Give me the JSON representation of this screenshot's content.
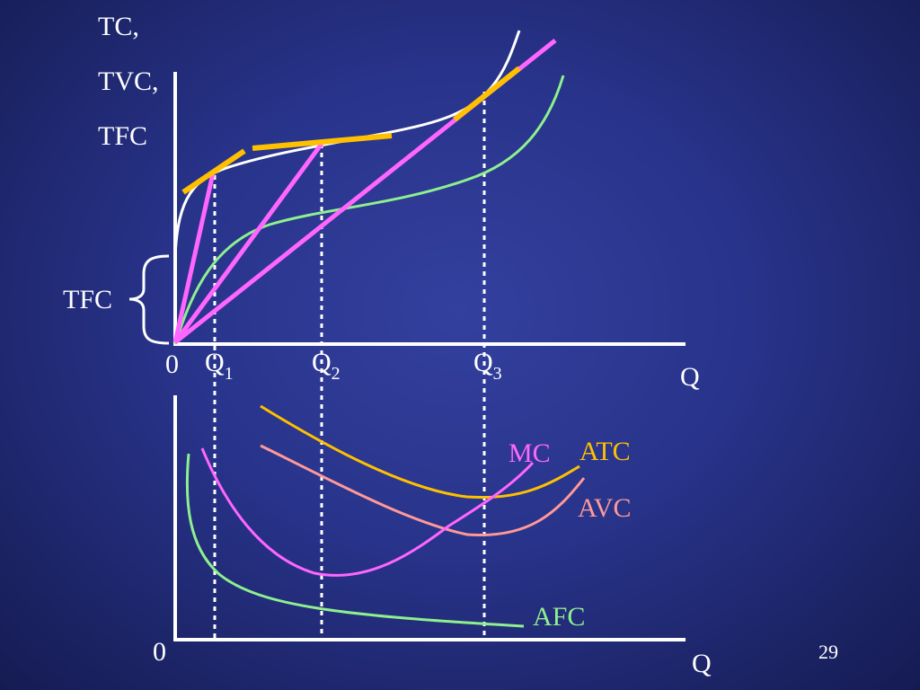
{
  "slide": {
    "page_number": "29"
  },
  "top_graph": {
    "y_label_lines": [
      "TC,",
      "TVC,",
      "TFC"
    ],
    "tfc_bracket_label": "TFC",
    "origin_label": "0",
    "x_label": "Q",
    "q_ticks": [
      {
        "base": "Q",
        "sub": "1"
      },
      {
        "base": "Q",
        "sub": "2"
      },
      {
        "base": "Q",
        "sub": "3"
      }
    ]
  },
  "bottom_graph": {
    "origin_label": "0",
    "x_label": "Q",
    "curve_labels": {
      "mc": "MC",
      "atc": "ATC",
      "avc": "AVC",
      "afc": "AFC"
    }
  },
  "colors": {
    "tc": "#ffffff",
    "tvc": "#8ef08e",
    "rays": "#ff66ff",
    "tangents": "#ffc000",
    "mc": "#ff66ff",
    "atc": "#ffc000",
    "avc": "#ff9999",
    "afc": "#8ef08e",
    "axes": "#ffffff"
  }
}
